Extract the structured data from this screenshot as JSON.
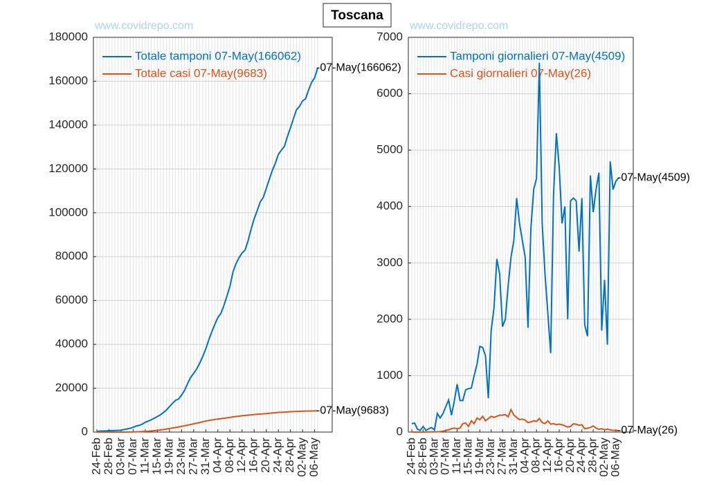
{
  "title": "Toscana",
  "chart_data": [
    {
      "type": "line",
      "categories": [
        "24-Feb",
        null,
        null,
        null,
        "28-Feb",
        null,
        null,
        null,
        "03-Mar",
        null,
        null,
        null,
        "07-Mar",
        null,
        null,
        null,
        "11-Mar",
        null,
        null,
        null,
        "15-Mar",
        null,
        null,
        null,
        "19-Mar",
        null,
        null,
        null,
        "23-Mar",
        null,
        null,
        null,
        "27-Mar",
        null,
        null,
        null,
        "31-Mar",
        null,
        null,
        null,
        "04-Apr",
        null,
        null,
        null,
        "08-Apr",
        null,
        null,
        null,
        "12-Apr",
        null,
        null,
        null,
        "16-Apr",
        null,
        null,
        null,
        "20-Apr",
        null,
        null,
        null,
        "24-Apr",
        null,
        null,
        null,
        "28-Apr",
        null,
        null,
        null,
        "02-May",
        null,
        null,
        null,
        "06-May",
        null
      ],
      "series": [
        {
          "name": "Totale tamponi 07-May(166062)",
          "color": "#0072bd",
          "annotation": "-07-May(166062)",
          "values": [
            300,
            450,
            500,
            530,
            630,
            660,
            720,
            800,
            840,
            1170,
            1420,
            1750,
            2200,
            2770,
            3070,
            3620,
            4470,
            5030,
            5590,
            6340,
            7110,
            7890,
            8890,
            10090,
            11610,
            13110,
            14460,
            15060,
            16860,
            19060,
            22130,
            24930,
            26800,
            28800,
            31400,
            34500,
            37900,
            42050,
            45750,
            49150,
            52250,
            54100,
            57700,
            62000,
            66500,
            73050,
            76750,
            79550,
            81650,
            83050,
            87250,
            92550,
            97250,
            100950,
            104950,
            106950,
            111050,
            115200,
            119300,
            122500,
            126650,
            128550,
            130250,
            134800,
            138700,
            143000,
            147000,
            148500,
            151000,
            152000,
            156000,
            159500,
            161553,
            166062
          ]
        },
        {
          "name": "Totale casi 07-May(9683)",
          "color": "#d95319",
          "annotation": "-07-May(9683)",
          "values": [
            2,
            2,
            2,
            2,
            2,
            3,
            6,
            10,
            13,
            18,
            26,
            41,
            71,
            111,
            171,
            241,
            301,
            371,
            521,
            681,
            781,
            981,
            1131,
            1381,
            1601,
            1881,
            2081,
            2321,
            2601,
            2861,
            3141,
            3441,
            3741,
            4051,
            4321,
            4721,
            5021,
            5281,
            5501,
            5731,
            5941,
            6111,
            6291,
            6491,
            6681,
            6921,
            7091,
            7241,
            7441,
            7581,
            7731,
            7861,
            8001,
            8131,
            8241,
            8331,
            8431,
            8577,
            8717,
            8837,
            8967,
            9027,
            9097,
            9177,
            9287,
            9357,
            9407,
            9467,
            9507,
            9557,
            9597,
            9627,
            9657,
            9683
          ]
        }
      ],
      "ylim": [
        0,
        180000
      ],
      "yticks": [
        0,
        20000,
        40000,
        60000,
        80000,
        100000,
        120000,
        140000,
        160000,
        180000
      ],
      "grid": true,
      "legend": "upper left",
      "watermark": "www.covidrepo.com"
    },
    {
      "type": "line",
      "categories": [
        "24-Feb",
        null,
        null,
        null,
        "28-Feb",
        null,
        null,
        null,
        "03-Mar",
        null,
        null,
        null,
        "07-Mar",
        null,
        null,
        null,
        "11-Mar",
        null,
        null,
        null,
        "15-Mar",
        null,
        null,
        null,
        "19-Mar",
        null,
        null,
        null,
        "23-Mar",
        null,
        null,
        null,
        "27-Mar",
        null,
        null,
        null,
        "31-Mar",
        null,
        null,
        null,
        "04-Apr",
        null,
        null,
        null,
        "08-Apr",
        null,
        null,
        null,
        "12-Apr",
        null,
        null,
        null,
        "16-Apr",
        null,
        null,
        null,
        "20-Apr",
        null,
        null,
        null,
        "24-Apr",
        null,
        null,
        null,
        "28-Apr",
        null,
        null,
        null,
        "02-May",
        null,
        null,
        null,
        "06-May",
        null
      ],
      "series": [
        {
          "name": "Tamponi giornalieri 07-May(4509)",
          "color": "#0072bd",
          "annotation": "-07-May(4509)",
          "values": [
            150,
            160,
            50,
            30,
            100,
            30,
            60,
            80,
            40,
            330,
            250,
            330,
            450,
            570,
            300,
            550,
            850,
            560,
            560,
            750,
            770,
            780,
            1000,
            1200,
            1520,
            1500,
            1350,
            600,
            1800,
            2200,
            3070,
            2800,
            1870,
            2000,
            2600,
            3100,
            3400,
            4150,
            3700,
            3400,
            3100,
            1850,
            3600,
            4300,
            4500,
            6550,
            3700,
            2800,
            2100,
            1400,
            4200,
            5300,
            4700,
            3700,
            4000,
            2000,
            4100,
            4150,
            4100,
            3200,
            4150,
            1900,
            1700,
            4550,
            3900,
            4300,
            4600,
            1800,
            2700,
            1550,
            4800,
            4300,
            4450,
            4509
          ]
        },
        {
          "name": "Casi giornalieri 07-May(26)",
          "color": "#d95319",
          "annotation": "-07-May(26)",
          "values": [
            2,
            0,
            0,
            0,
            0,
            1,
            3,
            4,
            3,
            5,
            8,
            15,
            30,
            40,
            60,
            70,
            60,
            70,
            150,
            160,
            100,
            200,
            150,
            250,
            220,
            280,
            200,
            240,
            280,
            260,
            280,
            300,
            300,
            310,
            270,
            400,
            300,
            260,
            220,
            230,
            210,
            170,
            180,
            200,
            190,
            240,
            170,
            150,
            200,
            140,
            150,
            130,
            140,
            130,
            110,
            90,
            100,
            146,
            140,
            120,
            130,
            60,
            70,
            80,
            110,
            70,
            50,
            60,
            40,
            50,
            40,
            30,
            30,
            26
          ]
        }
      ],
      "ylim": [
        0,
        7000
      ],
      "yticks": [
        0,
        1000,
        2000,
        3000,
        4000,
        5000,
        6000,
        7000
      ],
      "grid": true,
      "legend": "upper left",
      "watermark": "www.covidrepo.com"
    }
  ]
}
